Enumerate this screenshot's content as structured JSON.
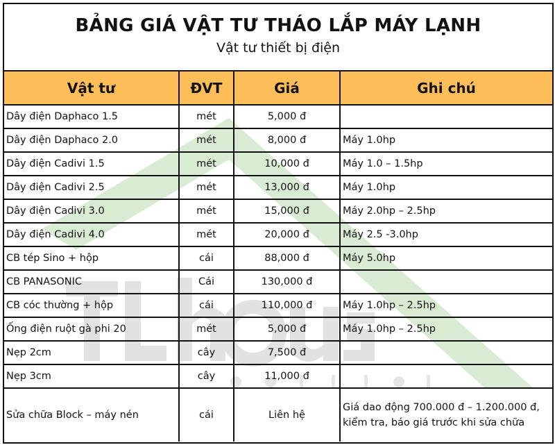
{
  "title": "BẢNG GIÁ VẬT TƯ THÁO LẮP MÁY LẠNH",
  "subtitle": "Vật tư thiết bị điện",
  "watermark": {
    "logo_text": "TL house",
    "tagline": "SOLUTION",
    "colors": {
      "roof": "#d9ecd3",
      "text": "#d6d6d6"
    }
  },
  "colors": {
    "header_bg": "#FDBE5A",
    "border": "#111111"
  },
  "table": {
    "headers": [
      "Vật tư",
      "ĐVT",
      "Giá",
      "Ghi chú"
    ],
    "rows": [
      [
        "Dây điện Daphaco 1.5",
        "mét",
        "5,000 đ",
        ""
      ],
      [
        "Dây điện Daphaco 2.0",
        "mét",
        "8,000 đ",
        "Máy 1.0hp"
      ],
      [
        "Dây điện Cadivi 1.5",
        "mét",
        "10,000 đ",
        "Máy 1.0 – 1.5hp"
      ],
      [
        "Dây điện Cadivi 2.5",
        "mét",
        "13,000 đ",
        "Máy 1.0hp"
      ],
      [
        "Dây điện Cadivi 3.0",
        "mét",
        "15,000 đ",
        "Máy 2.0hp – 2.5hp"
      ],
      [
        "Dây điện Cadivi 4.0",
        "mét",
        "20,000 đ",
        "Máy 2.5 -3.0hp"
      ],
      [
        "CB tép Sino + hộp",
        "cái",
        "88,000 đ",
        "Máy 5.0hp"
      ],
      [
        "CB PANASONIC",
        "Cái",
        "130,000 đ",
        ""
      ],
      [
        "CB cóc thường + hộp",
        "cái",
        "110,000 đ",
        "Máy 1.0hp – 2.5hp"
      ],
      [
        "Ống điện ruột gà phi 20",
        "mét",
        "5,000 đ",
        "Máy 1.0hp – 2.5hp"
      ],
      [
        "Nẹp 2cm",
        "cây",
        "7,500 đ",
        ""
      ],
      [
        "Nẹp 3cm",
        "cây",
        "11,000 đ",
        ""
      ],
      [
        "Sửa chữa Block – máy nén",
        "cái",
        "Liên hệ",
        "Giá dao động 700.000 đ – 1.200.000 đ, kiểm tra, báo giá trước khi sửa chữa"
      ]
    ]
  }
}
